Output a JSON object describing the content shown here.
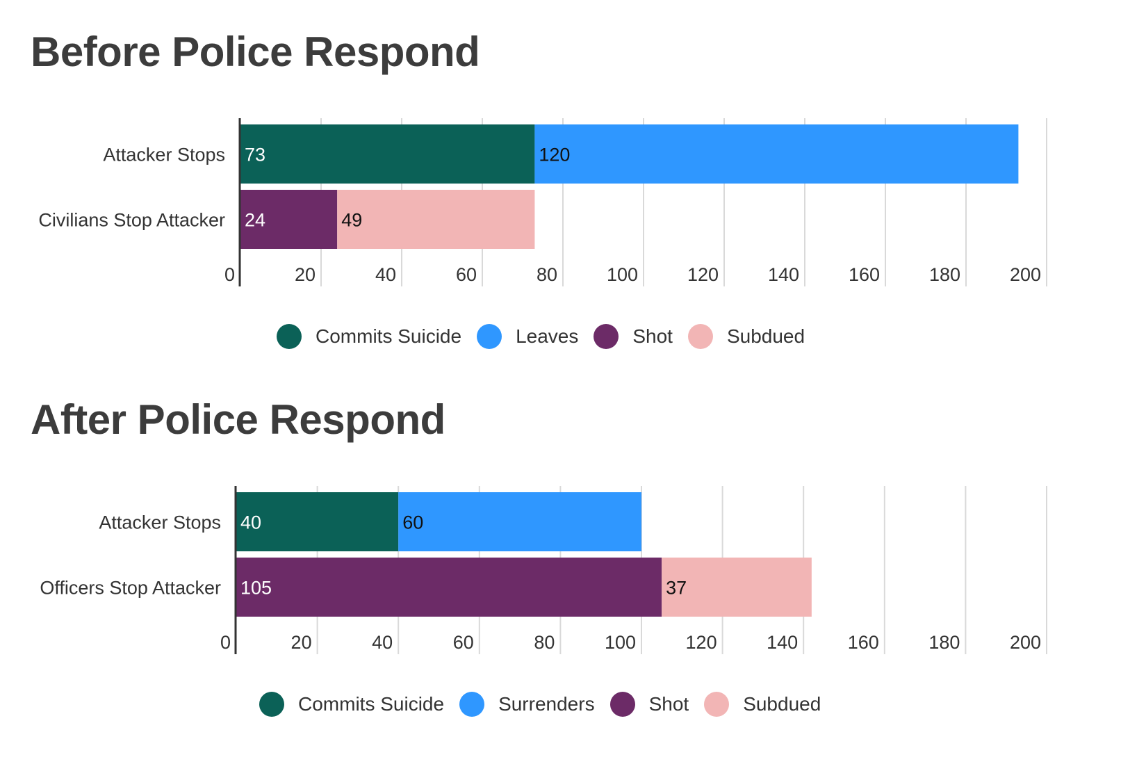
{
  "chart_data": [
    {
      "type": "bar",
      "orientation": "horizontal",
      "stacked": true,
      "title": "Before Police Respond",
      "categories": [
        "Attacker Stops",
        "Civilians Stop Attacker"
      ],
      "series": [
        {
          "name": "Commits Suicide",
          "color": "#0b6157",
          "values": [
            73,
            null
          ]
        },
        {
          "name": "Leaves",
          "color": "#2f97ff",
          "values": [
            120,
            null
          ]
        },
        {
          "name": "Shot",
          "color": "#6c2b67",
          "values": [
            null,
            24
          ]
        },
        {
          "name": "Subdued",
          "color": "#f2b5b5",
          "values": [
            null,
            49
          ]
        }
      ],
      "xlim": [
        0,
        200
      ],
      "ticks": [
        0,
        20,
        40,
        60,
        80,
        100,
        120,
        140,
        160,
        180,
        200
      ],
      "grid": true,
      "legend_position": "bottom-center"
    },
    {
      "type": "bar",
      "orientation": "horizontal",
      "stacked": true,
      "title": "After Police Respond",
      "categories": [
        "Attacker Stops",
        "Officers Stop Attacker"
      ],
      "series": [
        {
          "name": "Commits Suicide",
          "color": "#0b6157",
          "values": [
            40,
            null
          ]
        },
        {
          "name": "Surrenders",
          "color": "#2f97ff",
          "values": [
            60,
            null
          ]
        },
        {
          "name": "Shot",
          "color": "#6c2b67",
          "values": [
            null,
            105
          ]
        },
        {
          "name": "Subdued",
          "color": "#f2b5b5",
          "values": [
            null,
            37
          ]
        }
      ],
      "xlim": [
        0,
        200
      ],
      "ticks": [
        0,
        20,
        40,
        60,
        80,
        100,
        120,
        140,
        160,
        180,
        200
      ],
      "grid": true,
      "legend_position": "bottom-center"
    }
  ]
}
